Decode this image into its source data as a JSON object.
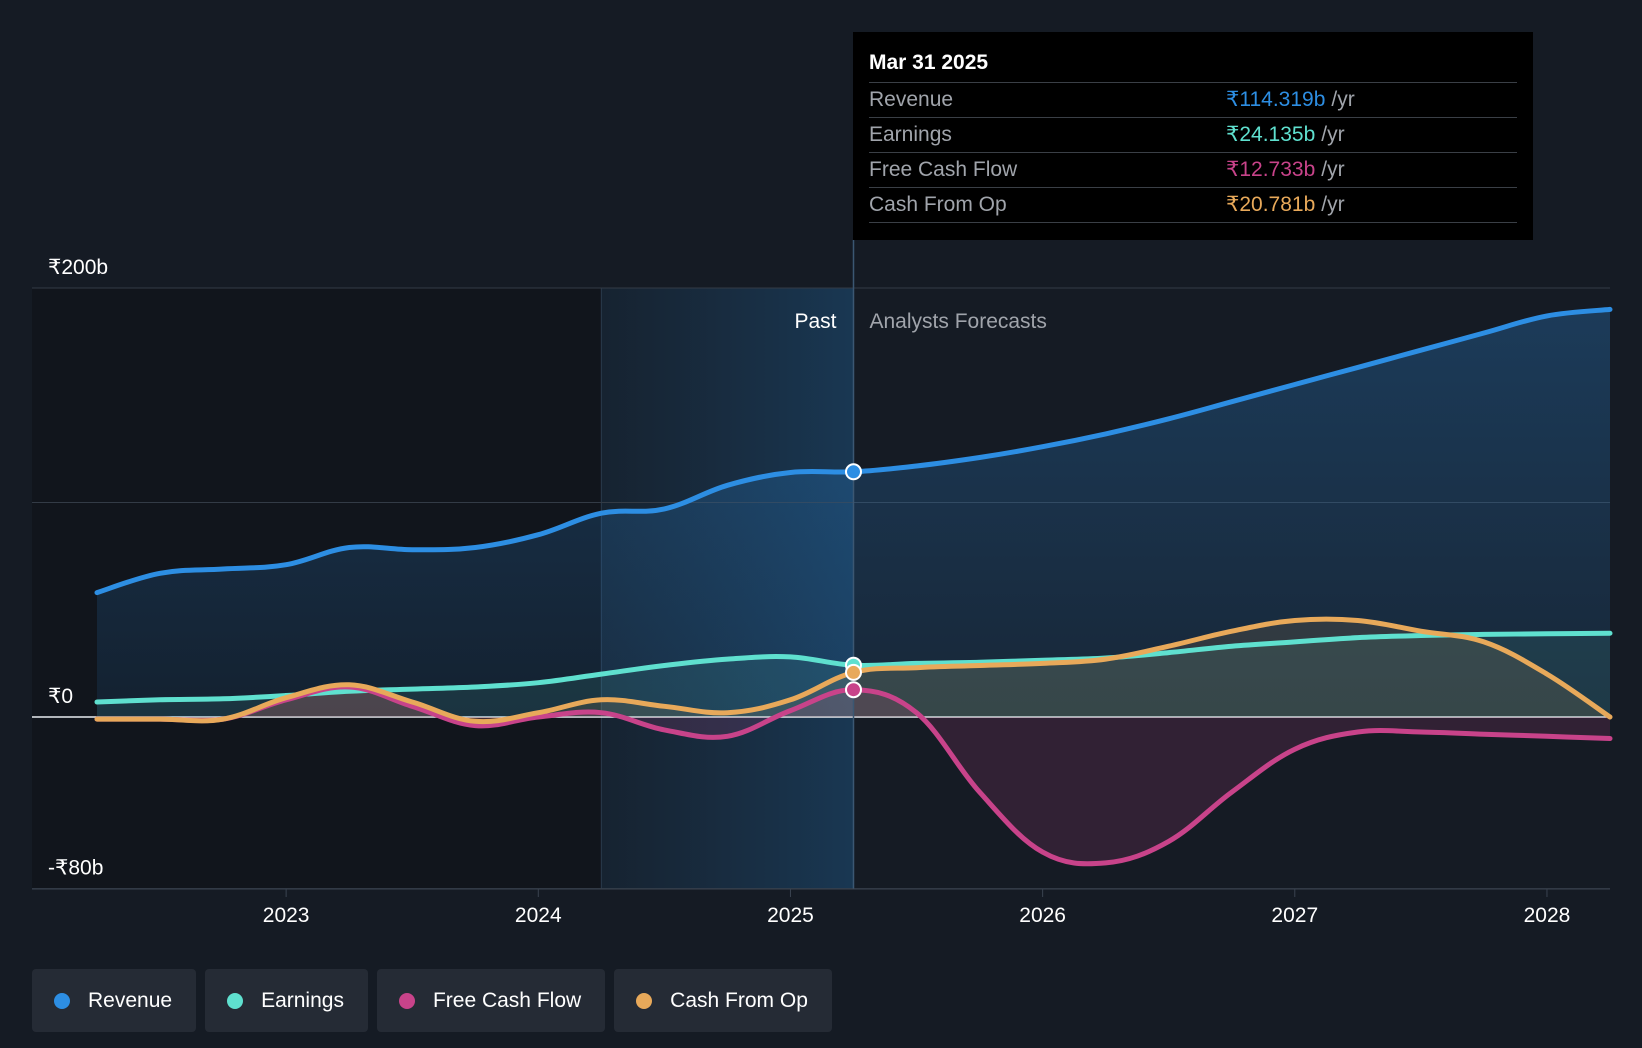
{
  "chart_data": {
    "type": "area",
    "y_unit": "₹ billions",
    "ylim": [
      -80,
      200
    ],
    "y_tick_labels": [
      "₹200b",
      "₹0",
      "-₹80b"
    ],
    "y_ticks": [
      200,
      100,
      0,
      -80
    ],
    "x_range": [
      2022.25,
      2028.25
    ],
    "x_tick_labels": [
      "2023",
      "2024",
      "2025",
      "2026",
      "2027",
      "2028"
    ],
    "x_ticks": [
      2023,
      2024,
      2025,
      2026,
      2027,
      2028
    ],
    "past_shade_start": 2024.25,
    "divider_x": 2025.25,
    "past_label": "Past",
    "forecast_label": "Analysts Forecasts",
    "series": [
      {
        "name": "Revenue",
        "key": "revenue",
        "color": "#2d8ee3",
        "x": [
          2022.25,
          2022.5,
          2022.75,
          2023.0,
          2023.25,
          2023.5,
          2023.75,
          2024.0,
          2024.25,
          2024.5,
          2024.75,
          2025.0,
          2025.25,
          2025.5,
          2025.75,
          2026.0,
          2026.25,
          2026.5,
          2026.75,
          2027.0,
          2027.25,
          2027.5,
          2027.75,
          2028.0,
          2028.25
        ],
        "values": [
          58,
          67,
          69,
          71,
          79,
          78,
          79,
          85,
          95,
          97,
          108,
          114,
          114.3,
          117,
          121,
          126,
          132,
          139,
          147,
          155,
          163,
          171,
          179,
          187,
          190
        ]
      },
      {
        "name": "Earnings",
        "key": "earnings",
        "color": "#5fe0cf",
        "x": [
          2022.25,
          2022.5,
          2022.75,
          2023.0,
          2023.25,
          2023.5,
          2023.75,
          2024.0,
          2024.25,
          2024.5,
          2024.75,
          2025.0,
          2025.25,
          2025.5,
          2025.75,
          2026.0,
          2026.25,
          2026.5,
          2026.75,
          2027.0,
          2027.25,
          2027.5,
          2027.75,
          2028.0,
          2028.25
        ],
        "values": [
          7,
          8,
          8.5,
          10,
          12,
          13,
          14,
          16,
          20,
          24,
          27,
          28,
          24.1,
          25,
          25.5,
          26.5,
          27.5,
          30,
          33,
          35,
          37,
          38,
          38.5,
          38.8,
          39
        ]
      },
      {
        "name": "Free Cash Flow",
        "key": "free_cash_flow",
        "color": "#c8438a",
        "x": [
          2022.25,
          2022.5,
          2022.75,
          2023.0,
          2023.25,
          2023.5,
          2023.75,
          2024.0,
          2024.25,
          2024.5,
          2024.75,
          2025.0,
          2025.25,
          2025.5,
          2025.75,
          2026.0,
          2026.25,
          2026.5,
          2026.75,
          2027.0,
          2027.25,
          2027.5,
          2027.75,
          2028.0,
          2028.25
        ],
        "values": [
          -1,
          -1,
          -1,
          8,
          14,
          5,
          -4,
          0,
          2,
          -6,
          -9,
          3,
          12.7,
          2,
          -35,
          -63,
          -68,
          -58,
          -35,
          -15,
          -7,
          -7,
          -8,
          -9,
          -10
        ]
      },
      {
        "name": "Cash From Op",
        "key": "cash_from_op",
        "color": "#e8a95a",
        "x": [
          2022.25,
          2022.5,
          2022.75,
          2023.0,
          2023.25,
          2023.5,
          2023.75,
          2024.0,
          2024.25,
          2024.5,
          2024.75,
          2025.0,
          2025.25,
          2025.5,
          2025.75,
          2026.0,
          2026.25,
          2026.5,
          2026.75,
          2027.0,
          2027.25,
          2027.5,
          2027.75,
          2028.0,
          2028.25
        ],
        "values": [
          -1,
          -1,
          -1,
          9,
          15,
          7,
          -2,
          2,
          8,
          5,
          2,
          8,
          20.8,
          23,
          24,
          25,
          27,
          33,
          40,
          45,
          45,
          40,
          35,
          20,
          0
        ]
      }
    ],
    "markers": [
      {
        "key": "revenue",
        "x": 2025.25,
        "y": 114.319
      },
      {
        "key": "earnings",
        "x": 2025.25,
        "y": 24.135
      },
      {
        "key": "free_cash_flow",
        "x": 2025.25,
        "y": 12.733
      },
      {
        "key": "cash_from_op",
        "x": 2025.25,
        "y": 20.781
      }
    ]
  },
  "tooltip": {
    "date": "Mar 31 2025",
    "unit": "/yr",
    "rows": [
      {
        "label": "Revenue",
        "value": "₹114.319b",
        "color": "#2d8ee3"
      },
      {
        "label": "Earnings",
        "value": "₹24.135b",
        "color": "#5fe0cf"
      },
      {
        "label": "Free Cash Flow",
        "value": "₹12.733b",
        "color": "#c8438a"
      },
      {
        "label": "Cash From Op",
        "value": "₹20.781b",
        "color": "#e8a95a"
      }
    ]
  },
  "legend": [
    {
      "label": "Revenue",
      "color": "#2d8ee3"
    },
    {
      "label": "Earnings",
      "color": "#5fe0cf"
    },
    {
      "label": "Free Cash Flow",
      "color": "#c8438a"
    },
    {
      "label": "Cash From Op",
      "color": "#e8a95a"
    }
  ]
}
